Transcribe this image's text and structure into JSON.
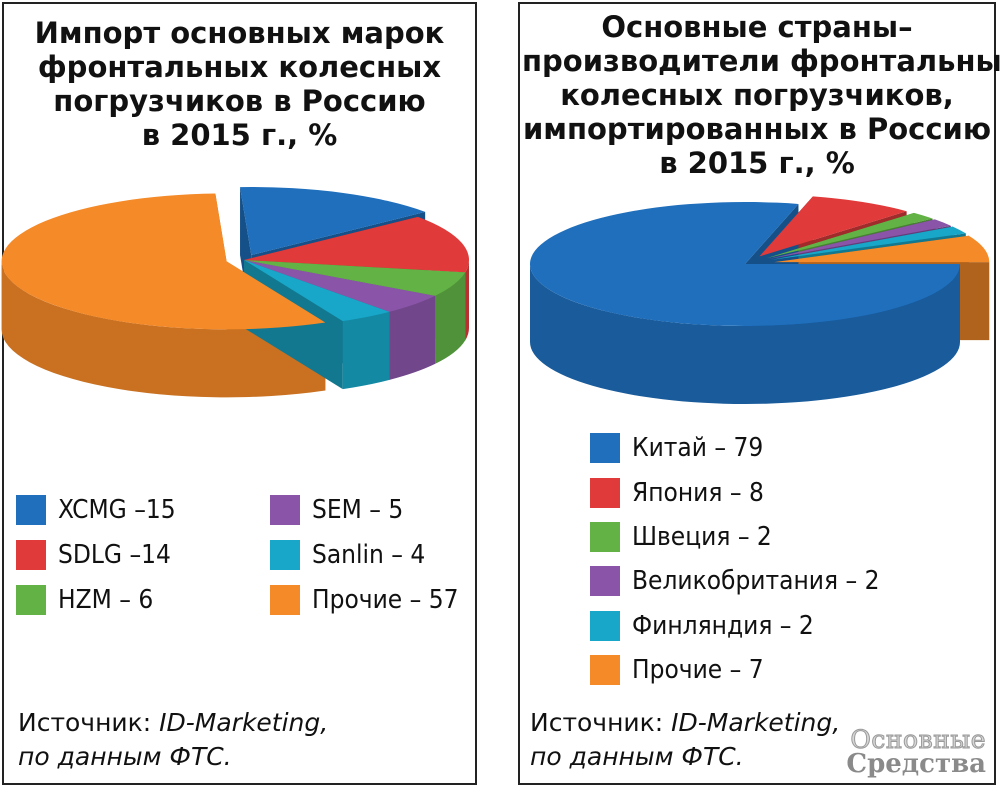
{
  "left": {
    "title_lines": [
      "Импорт основных марок",
      "фронтальных колесных",
      "погрузчиков в Россию",
      "в 2015 г., %"
    ],
    "legend": [
      {
        "label": "XCMG –15",
        "color": "#1f6fbd"
      },
      {
        "label": "SDLG –14",
        "color": "#e03a3a"
      },
      {
        "label": "HZM – 6",
        "color": "#62b245"
      },
      {
        "label": "SEM – 5",
        "color": "#8a55a8"
      },
      {
        "label": "Sanlin – 4",
        "color": "#18a7c8"
      },
      {
        "label": "Прочие – 57",
        "color": "#f58a28"
      }
    ],
    "source_line1_prefix": "Источник: ",
    "source_line1_italic": "ID-Marketing,",
    "source_line2": "по данным ФТС."
  },
  "right": {
    "title_lines": [
      "Основные страны–",
      "производители фронтальных",
      "колесных погрузчиков,",
      "импортированных в Россию",
      "в 2015 г., %"
    ],
    "legend": [
      {
        "label": "Китай – 79",
        "color": "#1f6fbd"
      },
      {
        "label": "Япония – 8",
        "color": "#e03a3a"
      },
      {
        "label": "Швеция – 2",
        "color": "#62b245"
      },
      {
        "label": "Великобритания – 2",
        "color": "#8a55a8"
      },
      {
        "label": "Финляндия – 2",
        "color": "#18a7c8"
      },
      {
        "label": "Прочие – 7",
        "color": "#f58a28"
      }
    ],
    "source_line1_prefix": "Источник: ",
    "source_line1_italic": "ID-Marketing,",
    "source_line2": "по данным ФТС."
  },
  "watermark": {
    "line1": "Основные",
    "line2": "Средства"
  },
  "chart_data": [
    {
      "type": "pie",
      "title": "Импорт основных марок фронтальных колесных погрузчиков в Россию в 2015 г., %",
      "categories": [
        "XCMG",
        "SDLG",
        "HZM",
        "SEM",
        "Sanlin",
        "Прочие"
      ],
      "values": [
        15,
        14,
        6,
        5,
        4,
        57
      ],
      "colors": [
        "#1f6fbd",
        "#e03a3a",
        "#62b245",
        "#8a55a8",
        "#18a7c8",
        "#f58a28"
      ],
      "exploded": [
        "XCMG",
        "Прочие"
      ],
      "style": "3d"
    },
    {
      "type": "pie",
      "title": "Основные страны–производители фронтальных колесных погрузчиков, импортированных в Россию в 2015 г., %",
      "categories": [
        "Китай",
        "Япония",
        "Швеция",
        "Великобритания",
        "Финляндия",
        "Прочие"
      ],
      "values": [
        79,
        8,
        2,
        2,
        2,
        7
      ],
      "colors": [
        "#1f6fbd",
        "#e03a3a",
        "#62b245",
        "#8a55a8",
        "#18a7c8",
        "#f58a28"
      ],
      "exploded": [
        "Япония",
        "Швеция",
        "Великобритания",
        "Финляндия",
        "Прочие"
      ],
      "style": "3d"
    }
  ]
}
